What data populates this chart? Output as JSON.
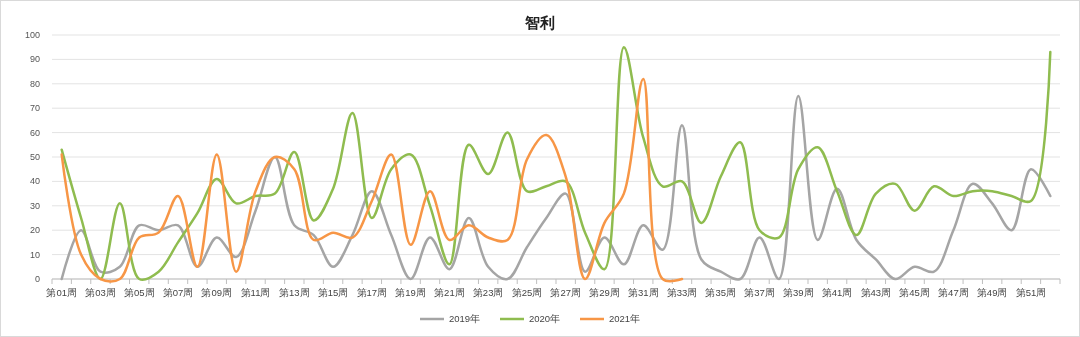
{
  "chart_data": {
    "type": "line",
    "title": "智利",
    "categories": [
      "第01周",
      null,
      "第03周",
      null,
      "第05周",
      null,
      "第07周",
      null,
      "第09周",
      null,
      "第11周",
      null,
      "第13周",
      null,
      "第15周",
      null,
      "第17周",
      null,
      "第19周",
      null,
      "第21周",
      null,
      "第23周",
      null,
      "第25周",
      null,
      "第27周",
      null,
      "第29周",
      null,
      "第31周",
      null,
      "第33周",
      null,
      "第35周",
      null,
      "第37周",
      null,
      "第39周",
      null,
      "第41周",
      null,
      "第43周",
      null,
      "第45周",
      null,
      "第47周",
      null,
      "第49周",
      null,
      "第51周",
      null
    ],
    "series": [
      {
        "name": "2019年",
        "color": "#a5a5a5",
        "values": [
          0,
          20,
          3,
          5,
          22,
          20,
          22,
          5,
          17,
          9,
          28,
          50,
          22,
          18,
          5,
          18,
          36,
          18,
          0,
          17,
          4,
          25,
          5,
          0,
          13,
          25,
          35,
          3,
          17,
          6,
          22,
          12,
          63,
          8,
          3,
          0,
          17,
          0,
          75,
          16,
          37,
          16,
          8,
          0,
          5,
          3,
          20,
          39,
          31,
          20,
          45,
          34
        ]
      },
      {
        "name": "2020年",
        "color": "#8fbc4f",
        "values": [
          53,
          25,
          0,
          31,
          0,
          3,
          15,
          27,
          41,
          31,
          34,
          35,
          52,
          24,
          37,
          68,
          25,
          45,
          51,
          30,
          6,
          55,
          43,
          60,
          36,
          38,
          40,
          19,
          4,
          95,
          58,
          38,
          40,
          23,
          42,
          56,
          20,
          17,
          45,
          54,
          36,
          18,
          35,
          39,
          28,
          38,
          34,
          36,
          36,
          34,
          32,
          93
        ]
      },
      {
        "name": "2021年",
        "color": "#f79646",
        "values": [
          51,
          10,
          0,
          0,
          17,
          19,
          34,
          5,
          51,
          3,
          36,
          50,
          45,
          16,
          19,
          17,
          32,
          51,
          14,
          36,
          16,
          22,
          17,
          16,
          49,
          59,
          42,
          0,
          23,
          35,
          82,
          0,
          0,
          null,
          null,
          null,
          null,
          null,
          null,
          null,
          null,
          null,
          null,
          null,
          null,
          null,
          null,
          null,
          null,
          null,
          null,
          null
        ]
      }
    ],
    "ylim": [
      0,
      100
    ],
    "yticks": [
      0,
      10,
      20,
      30,
      40,
      50,
      60,
      70,
      80,
      90,
      100
    ],
    "grid": "y",
    "legend": "bottom",
    "marker": "none",
    "line_style": "solid"
  }
}
